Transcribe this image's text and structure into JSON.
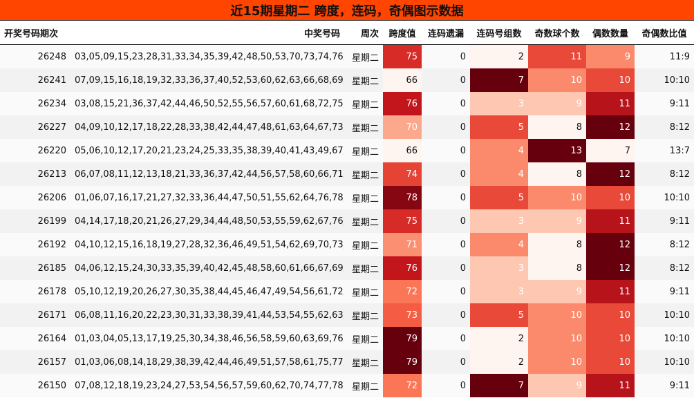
{
  "title": "近15期星期二 跨度，连码，奇偶图示数据",
  "chart_data": {
    "type": "table",
    "columns": [
      "开奖号码期次",
      "中奖号码",
      "周次",
      "跨度值",
      "连码遗漏",
      "连码号组数",
      "奇数球个数",
      "偶数数量",
      "奇偶数比值"
    ],
    "rows": [
      [
        "26248",
        "03,05,09,15,23,28,31,33,34,35,39,42,48,50,53,70,73,74,76,78",
        "星期二",
        75,
        0,
        2,
        11,
        9,
        "11:9"
      ],
      [
        "26241",
        "07,09,15,16,18,19,32,33,36,37,40,52,53,60,62,63,66,68,69,73",
        "星期二",
        66,
        0,
        7,
        10,
        10,
        "10:10"
      ],
      [
        "26234",
        "03,08,15,21,36,37,42,44,46,50,52,55,56,57,60,61,68,72,75,79",
        "星期二",
        76,
        0,
        3,
        9,
        11,
        "9:11"
      ],
      [
        "26227",
        "04,09,10,12,17,18,22,28,33,38,42,44,47,48,61,63,64,67,73,74",
        "星期二",
        70,
        0,
        5,
        8,
        12,
        "8:12"
      ],
      [
        "26220",
        "05,06,10,12,17,20,21,23,24,25,33,35,38,39,40,41,43,49,67,71",
        "星期二",
        66,
        0,
        4,
        13,
        7,
        "13:7"
      ],
      [
        "26213",
        "06,07,08,11,12,13,18,21,33,36,37,42,44,56,57,58,60,66,71,80",
        "星期二",
        74,
        0,
        4,
        8,
        12,
        "8:12"
      ],
      [
        "26206",
        "01,06,07,16,17,21,27,32,33,36,44,47,50,51,55,62,64,76,78,79",
        "星期二",
        78,
        0,
        5,
        10,
        10,
        "10:10"
      ],
      [
        "26199",
        "04,14,17,18,20,21,26,27,29,34,44,48,50,53,55,59,62,67,76,79",
        "星期二",
        75,
        0,
        3,
        9,
        11,
        "9:11"
      ],
      [
        "26192",
        "04,10,12,15,16,18,19,27,28,32,36,46,49,51,54,62,69,70,73,75",
        "星期二",
        71,
        0,
        4,
        8,
        12,
        "8:12"
      ],
      [
        "26185",
        "04,06,12,15,24,30,33,35,39,40,42,45,48,58,60,61,66,67,69,80",
        "星期二",
        76,
        0,
        3,
        8,
        12,
        "8:12"
      ],
      [
        "26178",
        "05,10,12,19,20,26,27,30,35,38,44,45,46,47,49,54,56,61,72,77",
        "星期二",
        72,
        0,
        3,
        9,
        11,
        "9:11"
      ],
      [
        "26171",
        "06,08,11,16,20,22,23,30,31,33,38,39,41,44,53,54,55,62,63,79",
        "星期二",
        73,
        0,
        5,
        10,
        10,
        "10:10"
      ],
      [
        "26164",
        "01,03,04,05,13,17,19,25,30,34,38,46,56,58,59,60,63,69,76,80",
        "星期二",
        79,
        0,
        2,
        10,
        10,
        "10:10"
      ],
      [
        "26157",
        "01,03,06,08,14,18,29,38,39,42,44,46,49,51,57,58,61,75,77,80",
        "星期二",
        79,
        0,
        2,
        10,
        10,
        "10:10"
      ],
      [
        "26150",
        "07,08,12,18,19,23,24,27,53,54,56,57,59,60,62,70,74,77,78,79",
        "星期二",
        72,
        0,
        7,
        9,
        11,
        "9:11"
      ]
    ],
    "heatmap_columns": [
      3,
      5,
      6,
      7
    ],
    "colormap": [
      "#fff5f0",
      "#fcbba1",
      "#fb6a4a",
      "#cb181d",
      "#67000d"
    ],
    "accent": "#ff4500"
  }
}
